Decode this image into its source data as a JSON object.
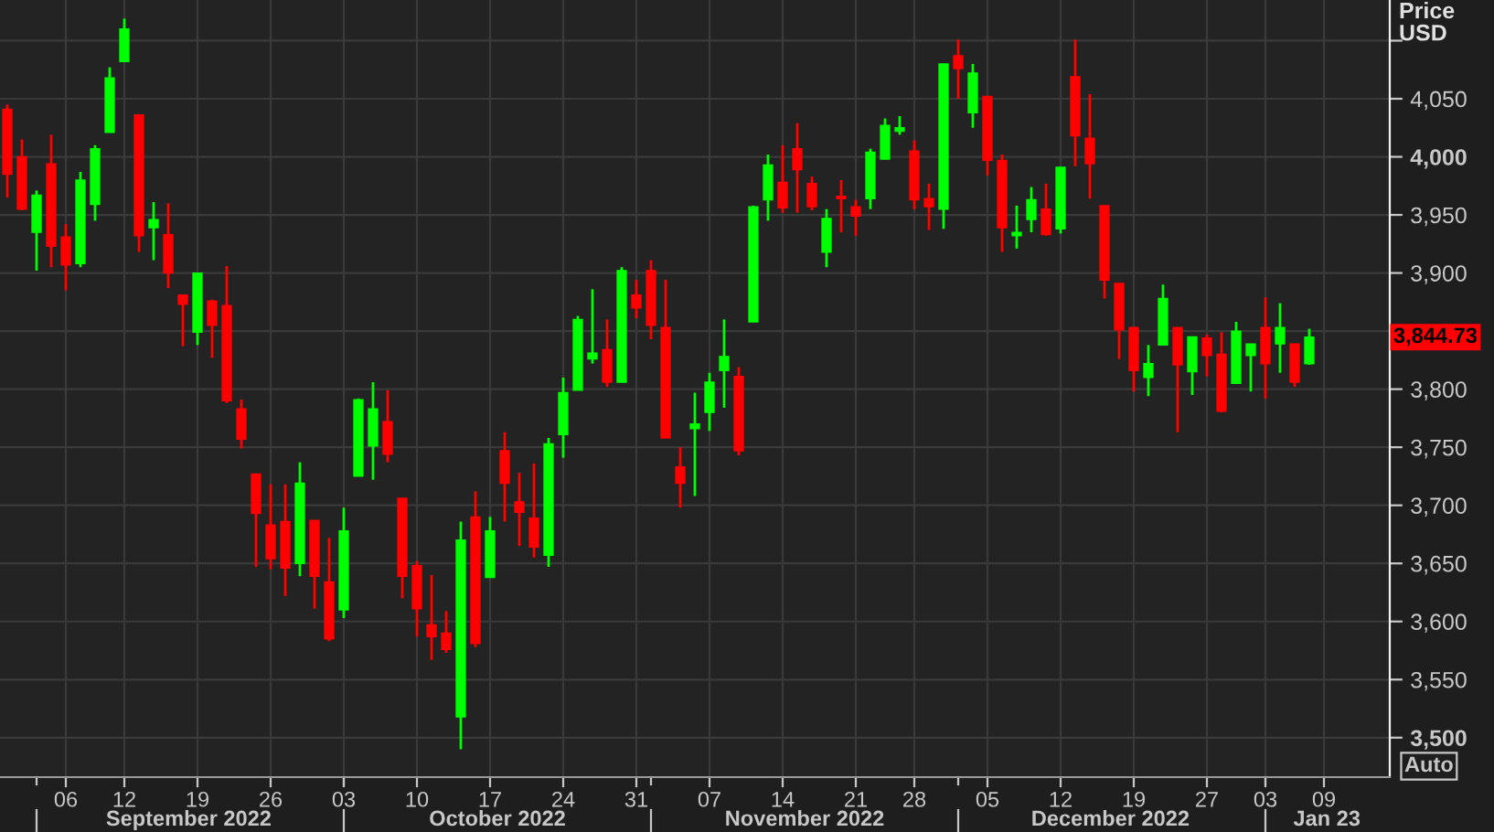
{
  "chart_data": {
    "type": "candlestick",
    "ylabel": "Price\nUSD",
    "categories": [
      null,
      null,
      null,
      null,
      "06",
      null,
      null,
      null,
      "12",
      null,
      null,
      null,
      null,
      "19",
      null,
      null,
      null,
      null,
      "26",
      null,
      null,
      null,
      null,
      "03",
      null,
      null,
      null,
      null,
      "10",
      null,
      null,
      null,
      null,
      "17",
      null,
      null,
      null,
      null,
      "24",
      null,
      null,
      null,
      null,
      "31",
      null,
      null,
      null,
      null,
      "07",
      null,
      null,
      null,
      null,
      "14",
      null,
      null,
      null,
      null,
      "21",
      null,
      null,
      null,
      "28",
      null,
      null,
      null,
      null,
      "05",
      null,
      null,
      null,
      null,
      "12",
      null,
      null,
      null,
      null,
      "19",
      null,
      null,
      null,
      null,
      "27",
      null,
      null,
      null,
      "03",
      null,
      null,
      null,
      "09",
      null,
      null,
      null,
      null
    ],
    "ohlc": [
      [
        4041,
        4045,
        3965,
        3985
      ],
      [
        4000,
        4015,
        3954,
        3955
      ],
      [
        3935,
        3971,
        3902,
        3967
      ],
      [
        3994,
        4019,
        3905,
        3923
      ],
      [
        3931,
        3942,
        3885,
        3907
      ],
      [
        3908,
        3987,
        3905,
        3980
      ],
      [
        3959,
        4010,
        3945,
        4007
      ],
      [
        4021,
        4077,
        4021,
        4068
      ],
      [
        4082,
        4119,
        4082,
        4110
      ],
      [
        4036,
        4036,
        3918,
        3932
      ],
      [
        3939,
        3961,
        3911,
        3946
      ],
      [
        3933,
        3960,
        3887,
        3900
      ],
      [
        3881,
        3881,
        3837,
        3873
      ],
      [
        3849,
        3900,
        3838,
        3900
      ],
      [
        3876,
        3877,
        3827,
        3855
      ],
      [
        3872,
        3906,
        3788,
        3790
      ],
      [
        3783,
        3791,
        3749,
        3757
      ],
      [
        3727,
        3727,
        3647,
        3693
      ],
      [
        3683,
        3718,
        3645,
        3654
      ],
      [
        3686,
        3718,
        3622,
        3646
      ],
      [
        3650,
        3737,
        3639,
        3719
      ],
      [
        3687,
        3687,
        3611,
        3639
      ],
      [
        3634,
        3672,
        3583,
        3585
      ],
      [
        3610,
        3698,
        3603,
        3678
      ],
      [
        3725,
        3792,
        3725,
        3791
      ],
      [
        3751,
        3806,
        3722,
        3783
      ],
      [
        3772,
        3799,
        3737,
        3744
      ],
      [
        3706,
        3706,
        3620,
        3639
      ],
      [
        3648,
        3652,
        3587,
        3611
      ],
      [
        3597,
        3640,
        3567,
        3587
      ],
      [
        3590,
        3609,
        3573,
        3576
      ],
      [
        3518,
        3686,
        3490,
        3670
      ],
      [
        3690,
        3712,
        3578,
        3581
      ],
      [
        3638,
        3690,
        3638,
        3678
      ],
      [
        3747,
        3763,
        3686,
        3719
      ],
      [
        3703,
        3728,
        3665,
        3694
      ],
      [
        3689,
        3736,
        3655,
        3664
      ],
      [
        3657,
        3758,
        3647,
        3753
      ],
      [
        3761,
        3810,
        3741,
        3797
      ],
      [
        3799,
        3863,
        3799,
        3860
      ],
      [
        3826,
        3886,
        3822,
        3831
      ],
      [
        3834,
        3860,
        3802,
        3806
      ],
      [
        3806,
        3905,
        3806,
        3902
      ],
      [
        3881,
        3894,
        3861,
        3870
      ],
      [
        3902,
        3911,
        3843,
        3855
      ],
      [
        3853,
        3894,
        3758,
        3758
      ],
      [
        3733,
        3750,
        3698,
        3719
      ],
      [
        3766,
        3797,
        3708,
        3770
      ],
      [
        3780,
        3814,
        3764,
        3806
      ],
      [
        3816,
        3860,
        3784,
        3828
      ],
      [
        3811,
        3819,
        3743,
        3747
      ],
      [
        3858,
        3958,
        3858,
        3957
      ],
      [
        3963,
        4002,
        3945,
        3993
      ],
      [
        3978,
        4010,
        3952,
        3956
      ],
      [
        4007,
        4029,
        3952,
        3989
      ],
      [
        3977,
        3983,
        3954,
        3957
      ],
      [
        3918,
        3955,
        3905,
        3947
      ],
      [
        3966,
        3980,
        3935,
        3964
      ],
      [
        3957,
        3963,
        3932,
        3949
      ],
      [
        3964,
        4007,
        3955,
        4004
      ],
      [
        3998,
        4033,
        3998,
        4027
      ],
      [
        4022,
        4035,
        4019,
        4025
      ],
      [
        4005,
        4014,
        3955,
        3963
      ],
      [
        3964,
        3977,
        3937,
        3957
      ],
      [
        3955,
        4080,
        3938,
        4080
      ],
      [
        4087,
        4101,
        4050,
        4076
      ],
      [
        4038,
        4080,
        4025,
        4072
      ],
      [
        4052,
        4052,
        3984,
        3997
      ],
      [
        3997,
        4002,
        3918,
        3939
      ],
      [
        3932,
        3958,
        3921,
        3935
      ],
      [
        3946,
        3974,
        3935,
        3963
      ],
      [
        3955,
        3977,
        3932,
        3933
      ],
      [
        3938,
        3991,
        3934,
        3991
      ],
      [
        4069,
        4101,
        3992,
        4018
      ],
      [
        4016,
        4054,
        3964,
        3994
      ],
      [
        3958,
        3958,
        3878,
        3894
      ],
      [
        3891,
        3891,
        3826,
        3851
      ],
      [
        3853,
        3853,
        3798,
        3816
      ],
      [
        3810,
        3838,
        3794,
        3822
      ],
      [
        3838,
        3890,
        3838,
        3878
      ],
      [
        3853,
        3853,
        3763,
        3821
      ],
      [
        3815,
        3845,
        3795,
        3845
      ],
      [
        3844,
        3847,
        3811,
        3829
      ],
      [
        3830,
        3849,
        3780,
        3781
      ],
      [
        3805,
        3858,
        3805,
        3850
      ],
      [
        3829,
        3839,
        3798,
        3839
      ],
      [
        3853,
        3879,
        3792,
        3822
      ],
      [
        3839,
        3874,
        3814,
        3853
      ],
      [
        3839,
        3839,
        3802,
        3806
      ],
      [
        3822,
        3852,
        3821,
        3844.73
      ],
      null,
      null,
      null,
      null,
      null
    ],
    "colors": [
      "#ff0000",
      "#ff0000",
      "#00ff00",
      "#ff0000",
      "#ff0000",
      "#00ff00",
      "#00ff00",
      "#00ff00",
      "#00ff00",
      "#ff0000",
      "#00ff00",
      "#ff0000",
      "#ff0000",
      "#00ff00",
      "#ff0000",
      "#ff0000",
      "#ff0000",
      "#ff0000",
      "#ff0000",
      "#ff0000",
      "#00ff00",
      "#ff0000",
      "#ff0000",
      "#00ff00",
      "#00ff00",
      "#00ff00",
      "#ff0000",
      "#ff0000",
      "#ff0000",
      "#ff0000",
      "#ff0000",
      "#00ff00",
      "#ff0000",
      "#00ff00",
      "#ff0000",
      "#ff0000",
      "#ff0000",
      "#00ff00",
      "#00ff00",
      "#00ff00",
      "#00ff00",
      "#ff0000",
      "#00ff00",
      "#ff0000",
      "#ff0000",
      "#ff0000",
      "#ff0000",
      "#00ff00",
      "#00ff00",
      "#00ff00",
      "#ff0000",
      "#00ff00",
      "#00ff00",
      "#ff0000",
      "#ff0000",
      "#ff0000",
      "#00ff00",
      "#ff0000",
      "#ff0000",
      "#00ff00",
      "#00ff00",
      "#00ff00",
      "#ff0000",
      "#ff0000",
      "#00ff00",
      "#ff0000",
      "#00ff00",
      "#ff0000",
      "#ff0000",
      "#00ff00",
      "#00ff00",
      "#ff0000",
      "#00ff00",
      "#ff0000",
      "#ff0000",
      "#ff0000",
      "#ff0000",
      "#ff0000",
      "#00ff00",
      "#00ff00",
      "#ff0000",
      "#00ff00",
      "#ff0000",
      "#ff0000",
      "#00ff00",
      "#00ff00",
      "#ff0000",
      "#00ff00",
      "#ff0000",
      "#00ff00",
      null,
      null,
      null,
      null,
      null
    ],
    "ylim": [
      3466,
      4135
    ],
    "yticks": [
      {
        "value": 3500,
        "label": "3,500"
      },
      {
        "value": 3550,
        "label": "3,550"
      },
      {
        "value": 3600,
        "label": "3,600"
      },
      {
        "value": 3650,
        "label": "3,650"
      },
      {
        "value": 3700,
        "label": "3,700"
      },
      {
        "value": 3750,
        "label": "3,750"
      },
      {
        "value": 3800,
        "label": "3,800"
      },
      {
        "value": 3850,
        "label": null
      },
      {
        "value": 3900,
        "label": "3,900"
      },
      {
        "value": 3950,
        "label": "3,950"
      },
      {
        "value": 4000,
        "label": "4,000"
      },
      {
        "value": 4050,
        "label": "4,050"
      },
      {
        "value": 4100,
        "label": null
      }
    ],
    "grid": true,
    "annotations": [
      "September 2022",
      "October 2022",
      "November 2022",
      "December 2022",
      "Jan 23",
      "3,844.73",
      "Auto"
    ]
  }
}
